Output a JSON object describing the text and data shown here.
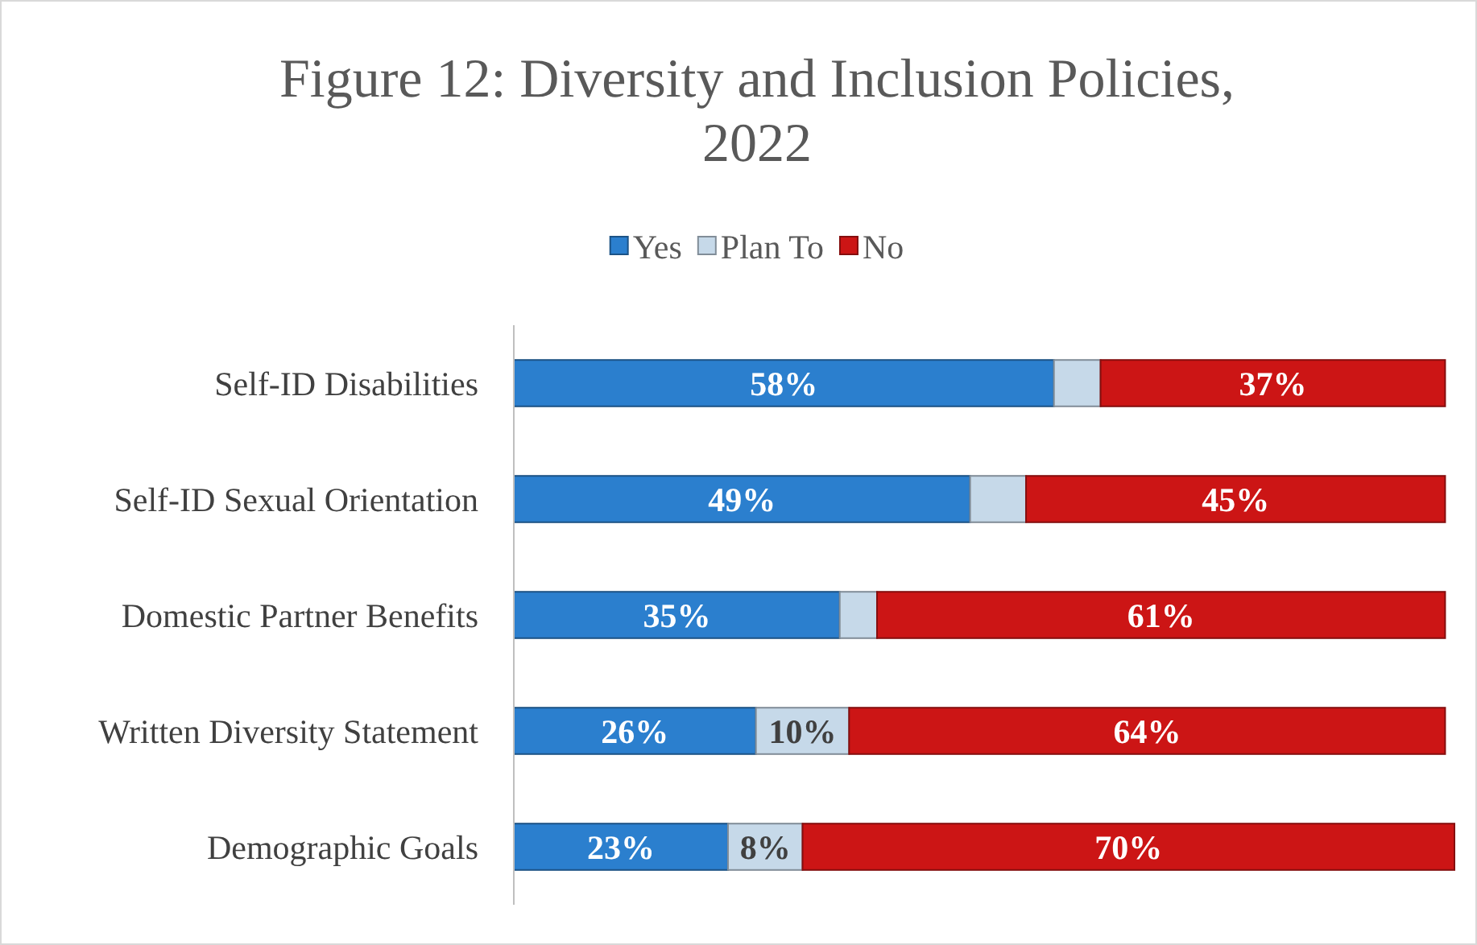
{
  "chart_data": {
    "type": "bar",
    "orientation": "horizontal",
    "stacked": true,
    "title": "Figure 12:  Diversity and Inclusion Policies, 2022",
    "legend": "top",
    "categories": [
      "Self-ID Disabilities",
      "Self-ID Sexual Orientation",
      "Domestic Partner Benefits",
      "Written Diversity Statement",
      "Demographic Goals"
    ],
    "series": [
      {
        "name": "Yes",
        "color": "#2b7fce",
        "values": [
          58,
          49,
          35,
          26,
          23
        ],
        "value_labels": [
          "58%",
          "49%",
          "35%",
          "26%",
          "23%"
        ]
      },
      {
        "name": "Plan To",
        "color": "#c6d9e9",
        "values": [
          5,
          6,
          4,
          10,
          8
        ],
        "value_labels": [
          null,
          null,
          null,
          "10%",
          "8%"
        ]
      },
      {
        "name": "No",
        "color": "#cc1515",
        "values": [
          37,
          45,
          61,
          64,
          70
        ],
        "value_labels": [
          "37%",
          "45%",
          "61%",
          "64%",
          "70%"
        ]
      }
    ]
  }
}
